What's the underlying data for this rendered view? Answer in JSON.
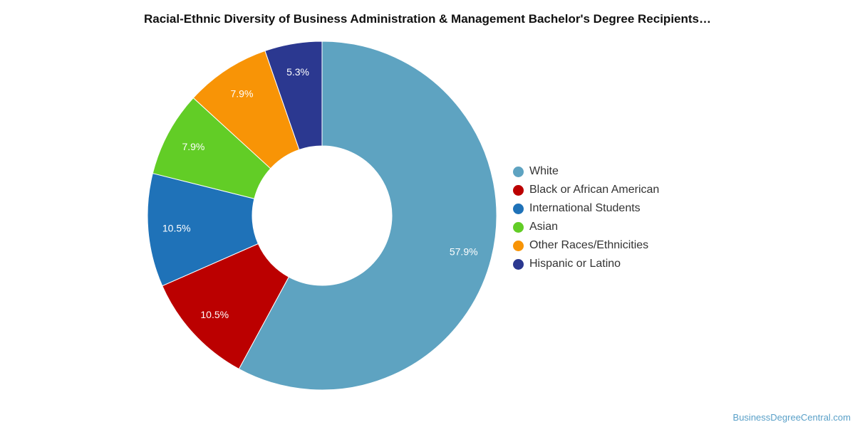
{
  "chart_data": {
    "type": "pie",
    "variant": "donut",
    "title": "Racial-Ethnic Diversity of Business Administration & Management Bachelor's Degree Recipients…",
    "slices": [
      {
        "label": "White",
        "value": 57.9,
        "value_label": "57.9%",
        "color": "#5ea3c1"
      },
      {
        "label": "Black or African American",
        "value": 10.5,
        "value_label": "10.5%",
        "color": "#bb0000"
      },
      {
        "label": "International Students",
        "value": 10.5,
        "value_label": "10.5%",
        "color": "#1f72b8"
      },
      {
        "label": "Asian",
        "value": 7.9,
        "value_label": "7.9%",
        "color": "#62cd26"
      },
      {
        "label": "Other Races/Ethnicities",
        "value": 7.9,
        "value_label": "7.9%",
        "color": "#f89406"
      },
      {
        "label": "Hispanic or Latino",
        "value": 5.3,
        "value_label": "5.3%",
        "color": "#2b3890"
      }
    ],
    "legend_position": "right",
    "start": "top, clockwise"
  },
  "footer": {
    "source": "BusinessDegreeCentral.com"
  }
}
